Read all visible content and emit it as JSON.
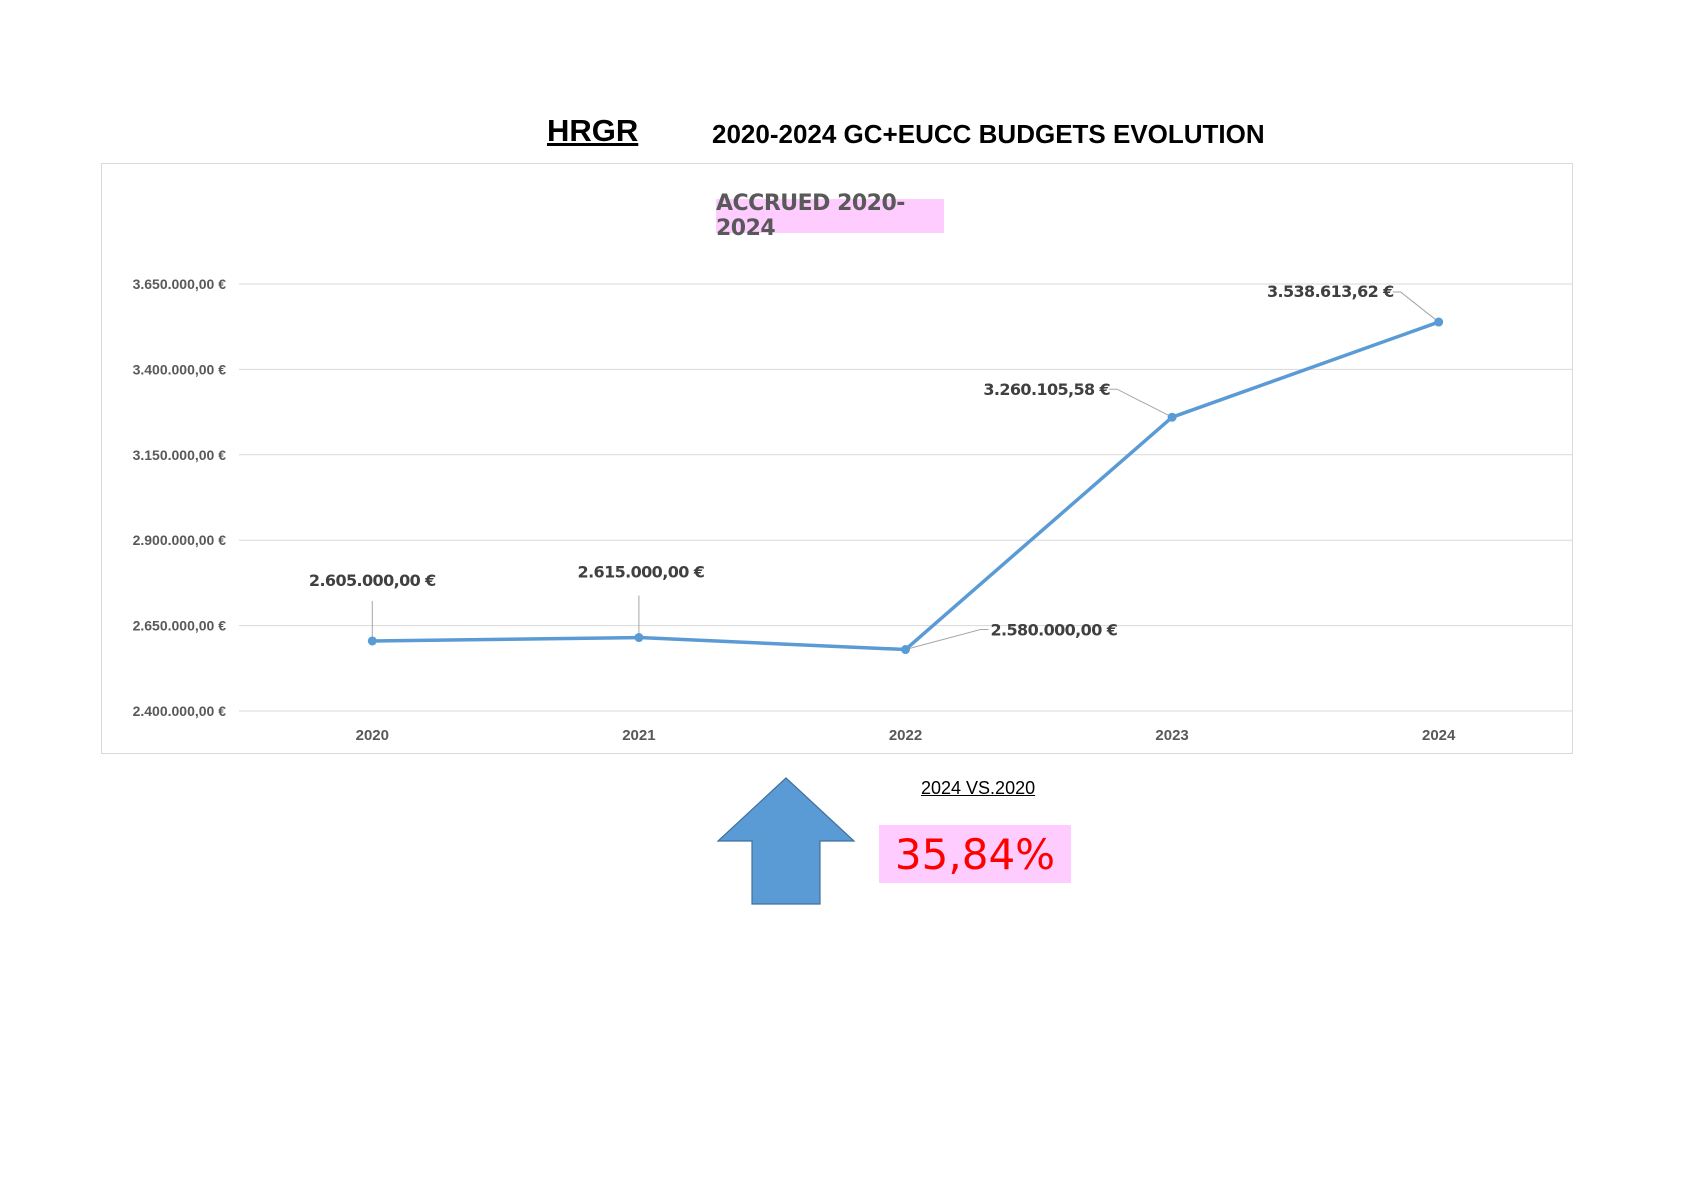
{
  "header": {
    "left_title": "HRGR",
    "right_title": "2020-2024 GC+EUCC BUDGETS EVOLUTION"
  },
  "chart_data": {
    "type": "line",
    "title": "ACCRUED 2020-2024",
    "title_bg_color": "#ffccff",
    "line_color": "#5b9bd5",
    "categories": [
      "2020",
      "2021",
      "2022",
      "2023",
      "2024"
    ],
    "series": [
      {
        "values": [
          2605000.0,
          2615000.0,
          2580000.0,
          3260105.58,
          3538613.62
        ],
        "labels": [
          "2.605.000,00 €",
          "2.615.000,00 €",
          "2.580.000,00 €",
          "3.260.105,58 €",
          "3.538.613,62 €"
        ]
      }
    ],
    "ylim": [
      2400000,
      3650000
    ],
    "yticks": [
      2400000,
      2650000,
      2900000,
      3150000,
      3400000,
      3650000
    ],
    "ytick_labels": [
      "2.400.000,00 €",
      "2.650.000,00 €",
      "2.900.000,00 €",
      "3.150.000,00 €",
      "3.400.000,00 €",
      "3.650.000,00 €"
    ],
    "grid": true,
    "legend": "none"
  },
  "comparison": {
    "label": "2024 VS.2020",
    "percent": "35,84%",
    "percent_color": "#ff0000",
    "box_color": "#ffccff",
    "arrow_icon": "up-arrow-icon",
    "arrow_color": "#5b9bd5"
  }
}
